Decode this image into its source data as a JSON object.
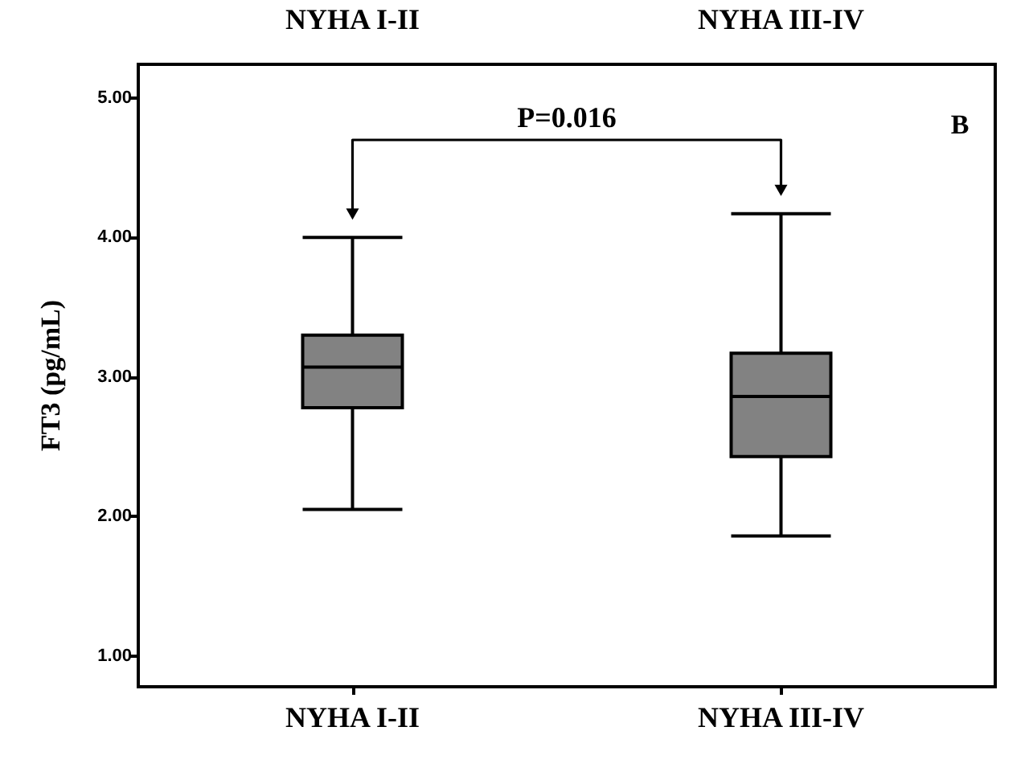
{
  "chart_data": {
    "type": "box",
    "ylabel": "FT3 (pg/mL)",
    "categories": [
      "NYHA I-II",
      "NYHA III-IV"
    ],
    "boxes": [
      {
        "low": 2.05,
        "q1": 2.78,
        "median": 3.07,
        "q3": 3.3,
        "high": 4.0
      },
      {
        "low": 1.86,
        "q1": 2.43,
        "median": 2.86,
        "q3": 3.17,
        "high": 4.17
      }
    ],
    "color": "#828282",
    "ylim": [
      0.78,
      5.24
    ],
    "yticks": [
      {
        "value": 1,
        "label": "1.00"
      },
      {
        "value": 2,
        "label": "2.00"
      },
      {
        "value": 3,
        "label": "3.00"
      },
      {
        "value": 4,
        "label": "4.00"
      },
      {
        "value": 5,
        "label": "5.00"
      }
    ],
    "annotations": [
      "P=0.016",
      "B",
      "NYHA I-II",
      "NYHA III-IV"
    ]
  }
}
